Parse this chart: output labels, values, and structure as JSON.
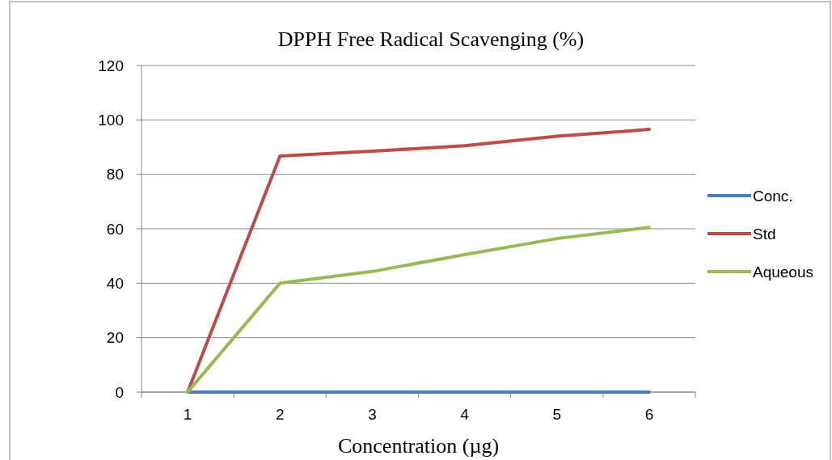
{
  "chart_data": {
    "type": "line",
    "title": "DPPH Free Radical Scavenging (%)",
    "xlabel": "Concentration (µg)",
    "categories": [
      "1",
      "2",
      "3",
      "4",
      "5",
      "6"
    ],
    "series": [
      {
        "name": "Conc.",
        "color": "#4a7ebb",
        "values": [
          0,
          0,
          0,
          0,
          0,
          0
        ]
      },
      {
        "name": "Std",
        "color": "#be4b48",
        "values": [
          0,
          86.7,
          88.5,
          90.5,
          94,
          96.5
        ]
      },
      {
        "name": "Aqueous",
        "color": "#98b954",
        "values": [
          0,
          40,
          44.3,
          50.5,
          56.4,
          60.5
        ]
      }
    ],
    "ylim": [
      0,
      120
    ],
    "yticks": [
      0,
      20,
      40,
      60,
      80,
      100,
      120
    ],
    "grid": "y",
    "legend": "right",
    "marker": "none",
    "line_style": "solid"
  }
}
